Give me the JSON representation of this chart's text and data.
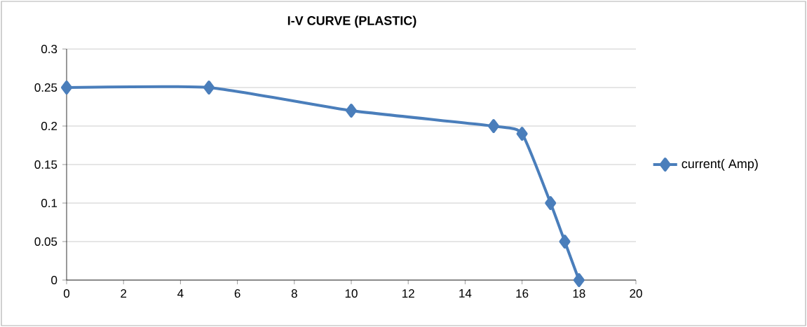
{
  "chart_data": {
    "type": "line",
    "title": "I-V CURVE (PLASTIC)",
    "x": [
      0,
      5,
      10,
      15,
      16,
      17,
      17.5,
      18
    ],
    "series": [
      {
        "name": "current( Amp)",
        "color": "#4a7ebb",
        "values": [
          0.25,
          0.25,
          0.22,
          0.2,
          0.19,
          0.1,
          0.05,
          0
        ]
      }
    ],
    "xlim": [
      0,
      20
    ],
    "xticks": [
      0,
      2,
      4,
      6,
      8,
      10,
      12,
      14,
      16,
      18,
      20
    ],
    "ylim": [
      0,
      0.3
    ],
    "yticks": [
      0,
      0.05,
      0.1,
      0.15,
      0.2,
      0.25,
      0.3
    ],
    "grid": "y",
    "legend": "right",
    "marker": "diamond",
    "line_style": "solid"
  }
}
